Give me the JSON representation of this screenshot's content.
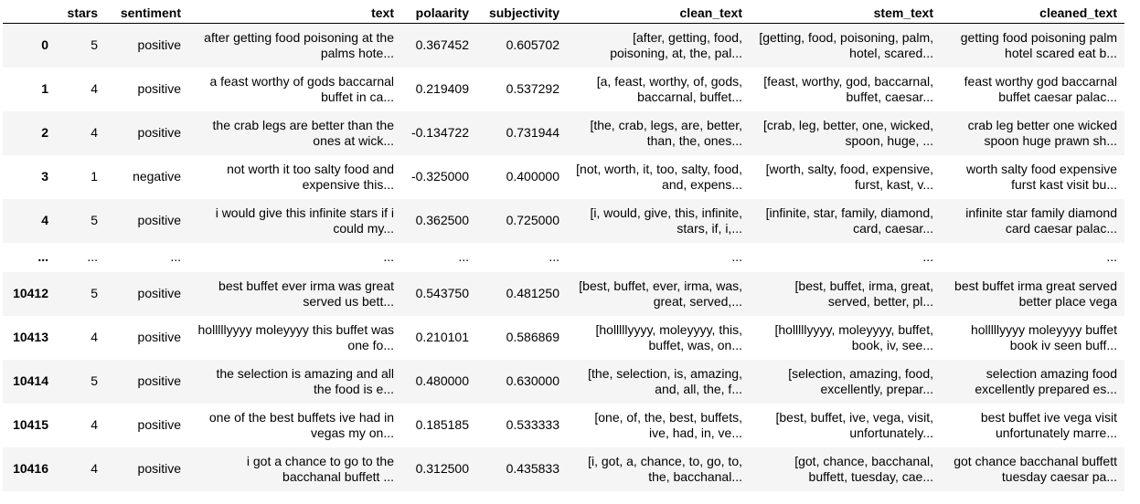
{
  "columns": [
    "",
    "stars",
    "sentiment",
    "text",
    "polaarity",
    "subjectivity",
    "clean_text",
    "stem_text",
    "cleaned_text"
  ],
  "rows": [
    {
      "index": "0",
      "stars": "5",
      "sentiment": "positive",
      "text": "after getting food poisoning at the palms hote...",
      "polaarity": "0.367452",
      "subjectivity": "0.605702",
      "clean_text": "[after, getting, food, poisoning, at, the, pal...",
      "stem_text": "[getting, food, poisoning, palm, hotel, scared...",
      "cleaned_text": "getting food poisoning palm hotel scared eat b..."
    },
    {
      "index": "1",
      "stars": "4",
      "sentiment": "positive",
      "text": "a feast worthy of gods baccarnal buffet in ca...",
      "polaarity": "0.219409",
      "subjectivity": "0.537292",
      "clean_text": "[a, feast, worthy, of, gods, baccarnal, buffet...",
      "stem_text": "[feast, worthy, god, baccarnal, buffet, caesar...",
      "cleaned_text": "feast worthy god baccarnal buffet caesar palac..."
    },
    {
      "index": "2",
      "stars": "4",
      "sentiment": "positive",
      "text": "the crab legs are better than the ones at wick...",
      "polaarity": "-0.134722",
      "subjectivity": "0.731944",
      "clean_text": "[the, crab, legs, are, better, than, the, ones...",
      "stem_text": "[crab, leg, better, one, wicked, spoon, huge, ...",
      "cleaned_text": "crab leg better one wicked spoon huge prawn sh..."
    },
    {
      "index": "3",
      "stars": "1",
      "sentiment": "negative",
      "text": "not worth it too salty food and expensive this...",
      "polaarity": "-0.325000",
      "subjectivity": "0.400000",
      "clean_text": "[not, worth, it, too, salty, food, and, expens...",
      "stem_text": "[worth, salty, food, expensive, furst, kast, v...",
      "cleaned_text": "worth salty food expensive furst kast visit bu..."
    },
    {
      "index": "4",
      "stars": "5",
      "sentiment": "positive",
      "text": "i would give this infinite stars if i could my...",
      "polaarity": "0.362500",
      "subjectivity": "0.725000",
      "clean_text": "[i, would, give, this, infinite, stars, if, i,...",
      "stem_text": "[infinite, star, family, diamond, card, caesar...",
      "cleaned_text": "infinite star family diamond card caesar palac..."
    },
    {
      "index": "...",
      "stars": "...",
      "sentiment": "...",
      "text": "...",
      "polaarity": "...",
      "subjectivity": "...",
      "clean_text": "...",
      "stem_text": "...",
      "cleaned_text": "..."
    },
    {
      "index": "10412",
      "stars": "5",
      "sentiment": "positive",
      "text": "best buffet ever irma was great served us bett...",
      "polaarity": "0.543750",
      "subjectivity": "0.481250",
      "clean_text": "[best, buffet, ever, irma, was, great, served,...",
      "stem_text": "[best, buffet, irma, great, served, better, pl...",
      "cleaned_text": "best buffet irma great served better place vega"
    },
    {
      "index": "10413",
      "stars": "4",
      "sentiment": "positive",
      "text": "holllllyyyy moleyyyy this buffet was one fo...",
      "polaarity": "0.210101",
      "subjectivity": "0.586869",
      "clean_text": "[holllllyyyy, moleyyyy, this, buffet, was, on...",
      "stem_text": "[holllllyyyy, moleyyyy, buffet, book, iv, see...",
      "cleaned_text": "holllllyyyy moleyyyy buffet book iv seen buff..."
    },
    {
      "index": "10414",
      "stars": "5",
      "sentiment": "positive",
      "text": "the selection is amazing and all the food is e...",
      "polaarity": "0.480000",
      "subjectivity": "0.630000",
      "clean_text": "[the, selection, is, amazing, and, all, the, f...",
      "stem_text": "[selection, amazing, food, excellently, prepar...",
      "cleaned_text": "selection amazing food excellently prepared es..."
    },
    {
      "index": "10415",
      "stars": "4",
      "sentiment": "positive",
      "text": "one of the best buffets ive had in vegas my on...",
      "polaarity": "0.185185",
      "subjectivity": "0.533333",
      "clean_text": "[one, of, the, best, buffets, ive, had, in, ve...",
      "stem_text": "[best, buffet, ive, vega, visit, unfortunately...",
      "cleaned_text": "best buffet ive vega visit unfortunately marre..."
    },
    {
      "index": "10416",
      "stars": "4",
      "sentiment": "positive",
      "text": "i got a chance to go to the bacchanal buffett ...",
      "polaarity": "0.312500",
      "subjectivity": "0.435833",
      "clean_text": "[i, got, a, chance, to, go, to, the, bacchanal...",
      "stem_text": "[got, chance, bacchanal, buffett, tuesday, cae...",
      "cleaned_text": "got chance bacchanal buffett tuesday caesar pa..."
    }
  ]
}
